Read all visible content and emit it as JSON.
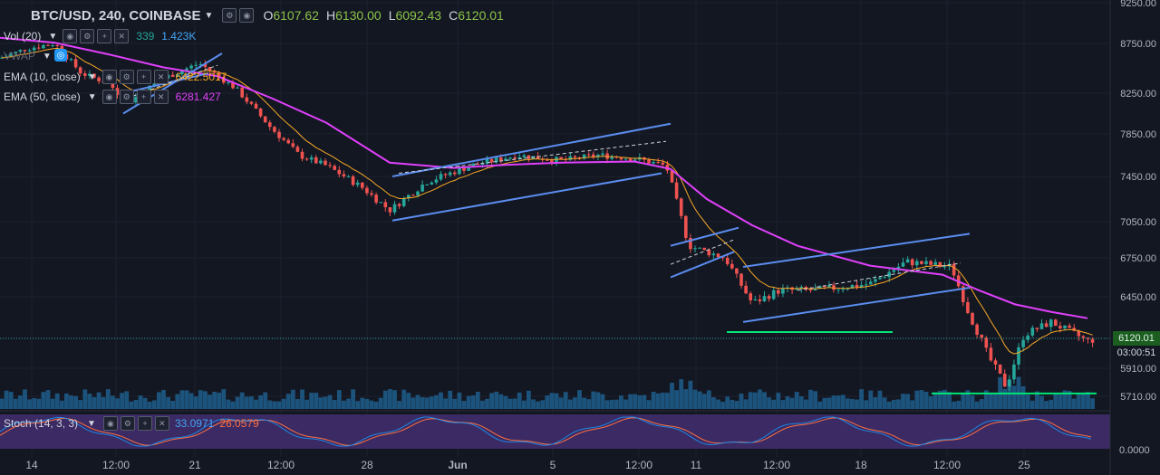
{
  "header": {
    "symbol": "BTC/USD, 240, COINBASE",
    "open_label": "O",
    "open": "6107.62",
    "high_label": "H",
    "high": "6130.00",
    "low_label": "L",
    "low": "6092.43",
    "close_label": "C",
    "close": "6120.01"
  },
  "indicators": {
    "vol": {
      "label": "Vol (20)",
      "v1": "339",
      "v2": "1.423K"
    },
    "vwap": {
      "label": "VWAP"
    },
    "ema10": {
      "label": "EMA (10, close)",
      "value": "6422.5017"
    },
    "ema50": {
      "label": "EMA (50, close)",
      "value": "6281.427"
    },
    "stoch": {
      "label": "Stoch (14, 3, 3)",
      "k": "33.0971",
      "d": "26.0579"
    }
  },
  "price_tag": {
    "value": "6120.01",
    "countdown": "03:00:51"
  },
  "colors": {
    "bg": "#131722",
    "up": "#26a69a",
    "down": "#ef5350",
    "ema50": "#e040fb",
    "ema10": "#f9a825",
    "channel": "#5b8def",
    "support": "#00e676",
    "volume": "#1e5a86",
    "stoch_bg": "#3b2a63",
    "stoch_k": "#1e88e5",
    "stoch_d": "#ff7043"
  },
  "chart_data": {
    "type": "candlestick",
    "price_axis": {
      "ticks": [
        "9250.00",
        "8750.00",
        "8250.00",
        "7850.00",
        "7450.00",
        "7050.00",
        "6750.00",
        "6450.00",
        "6120.01",
        "5910.00",
        "5710.00"
      ],
      "range": [
        5650,
        9320
      ]
    },
    "stoch_axis": {
      "ticks": [
        "0.0000"
      ]
    },
    "x_ticks": [
      "14",
      "12:00",
      "21",
      "12:00",
      "28",
      "Jun",
      "5",
      "12:00",
      "11",
      "12:00",
      "18",
      "12:00",
      "25"
    ],
    "ema50_path": [
      [
        0,
        8820
      ],
      [
        60,
        8760
      ],
      [
        120,
        8640
      ],
      [
        180,
        8510
      ],
      [
        240,
        8420
      ],
      [
        300,
        8200
      ],
      [
        360,
        7960
      ],
      [
        430,
        7580
      ],
      [
        500,
        7530
      ],
      [
        560,
        7560
      ],
      [
        620,
        7580
      ],
      [
        700,
        7590
      ],
      [
        740,
        7520
      ],
      [
        780,
        7250
      ],
      [
        830,
        7020
      ],
      [
        880,
        6850
      ],
      [
        960,
        6690
      ],
      [
        1040,
        6620
      ],
      [
        1080,
        6500
      ],
      [
        1120,
        6390
      ],
      [
        1160,
        6330
      ],
      [
        1200,
        6280
      ]
    ],
    "candle_anchors": [
      [
        0,
        8600
      ],
      [
        30,
        8700
      ],
      [
        60,
        8750
      ],
      [
        90,
        8450
      ],
      [
        120,
        8350
      ],
      [
        140,
        8150
      ],
      [
        180,
        8400
      ],
      [
        220,
        8550
      ],
      [
        260,
        8300
      ],
      [
        300,
        7900
      ],
      [
        330,
        7650
      ],
      [
        360,
        7550
      ],
      [
        400,
        7350
      ],
      [
        430,
        7150
      ],
      [
        470,
        7400
      ],
      [
        520,
        7550
      ],
      [
        570,
        7650
      ],
      [
        620,
        7600
      ],
      [
        660,
        7650
      ],
      [
        700,
        7620
      ],
      [
        735,
        7550
      ],
      [
        760,
        6850
      ],
      [
        800,
        6750
      ],
      [
        830,
        6400
      ],
      [
        860,
        6500
      ],
      [
        900,
        6500
      ],
      [
        960,
        6550
      ],
      [
        1000,
        6720
      ],
      [
        1050,
        6680
      ],
      [
        1070,
        6300
      ],
      [
        1090,
        6000
      ],
      [
        1110,
        5780
      ],
      [
        1130,
        6150
      ],
      [
        1160,
        6250
      ],
      [
        1200,
        6100
      ],
      [
        1210,
        6120
      ]
    ],
    "channels": [
      [
        [
          136,
          8050
        ],
        [
          245,
          8650
        ]
      ],
      [
        [
          136,
          8250
        ],
        [
          230,
          8450
        ]
      ],
      [
        [
          433,
          7450
        ],
        [
          740,
          7950
        ]
      ],
      [
        [
          433,
          7060
        ],
        [
          730,
          7480
        ]
      ],
      [
        [
          740,
          6850
        ],
        [
          815,
          7000
        ]
      ],
      [
        [
          740,
          6600
        ],
        [
          810,
          6800
        ]
      ],
      [
        [
          820,
          6680
        ],
        [
          1070,
          6950
        ]
      ],
      [
        [
          820,
          6250
        ],
        [
          1070,
          6520
        ]
      ]
    ],
    "dashed_mids": [
      [
        [
          140,
          8200
        ],
        [
          240,
          8530
        ]
      ],
      [
        [
          440,
          7480
        ],
        [
          735,
          7780
        ]
      ],
      [
        [
          740,
          6700
        ],
        [
          810,
          6900
        ]
      ],
      [
        [
          880,
          6500
        ],
        [
          1060,
          6710
        ]
      ]
    ],
    "supports": [
      [
        [
          802,
          6170
        ],
        [
          985,
          6170
        ]
      ],
      [
        [
          1028,
          5730
        ],
        [
          1210,
          5730
        ]
      ]
    ]
  }
}
